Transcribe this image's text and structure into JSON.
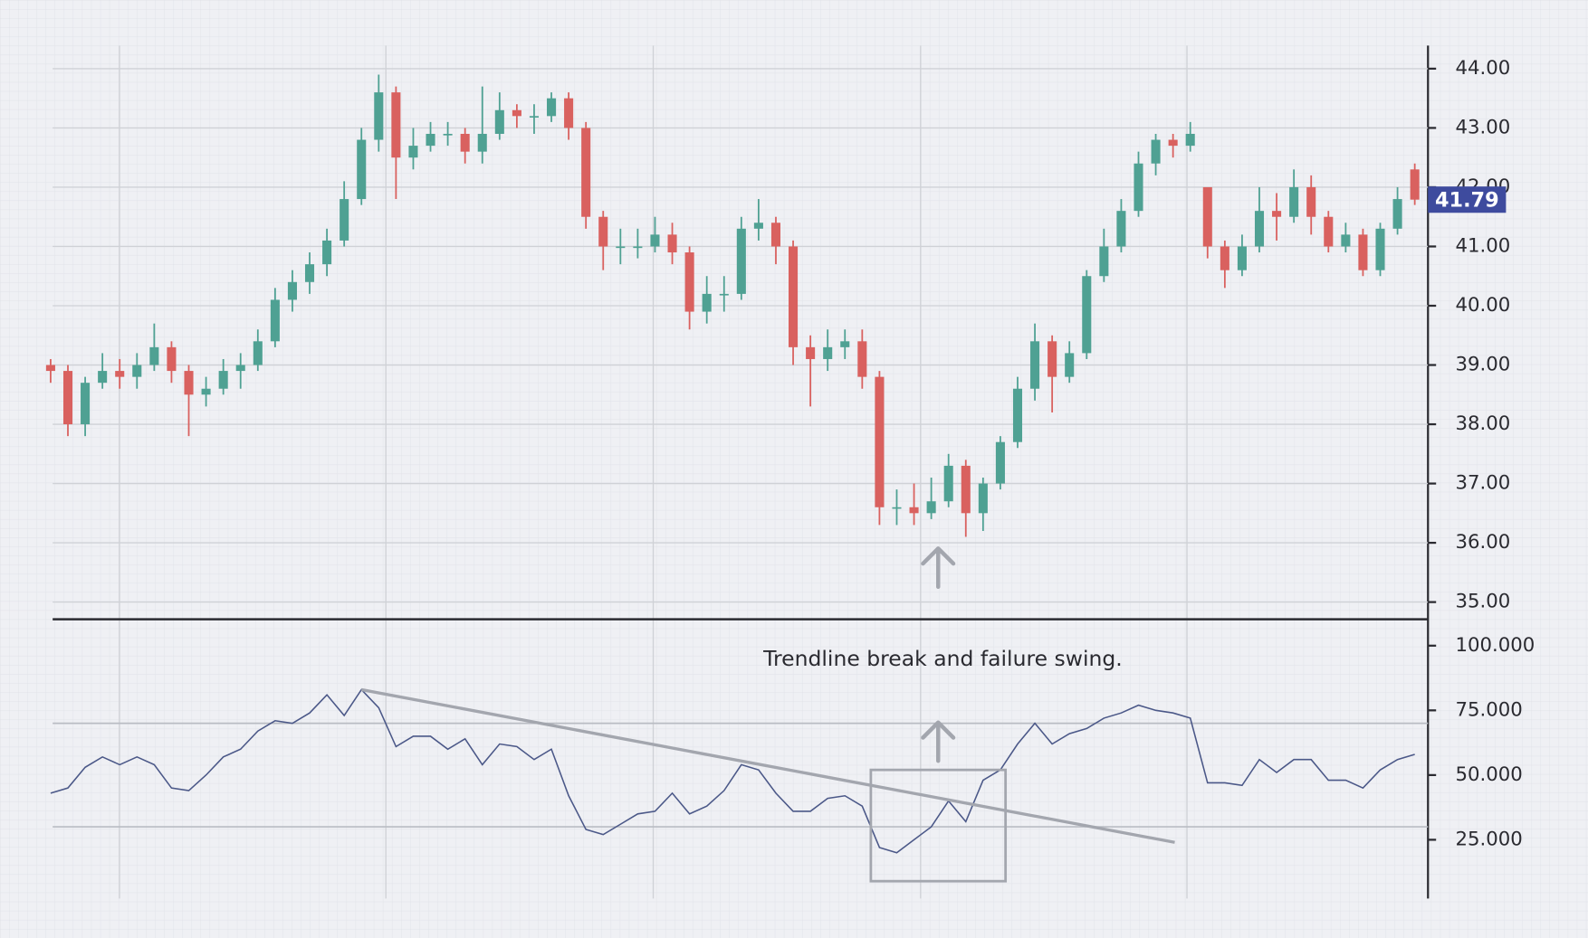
{
  "chart_data": [
    {
      "type": "candlestick",
      "open": [
        39.0,
        38.9,
        38.0,
        38.7,
        38.9,
        38.8,
        39.0,
        39.3,
        38.9,
        38.5,
        38.6,
        38.9,
        39.0,
        39.4,
        40.1,
        40.4,
        40.7,
        41.1,
        41.8,
        42.8,
        43.6,
        42.5,
        42.7,
        42.9,
        42.9,
        42.6,
        42.9,
        43.3,
        43.2,
        43.2,
        43.5,
        43.0,
        41.5,
        41.0,
        41.0,
        41.0,
        41.2,
        40.9,
        39.9,
        40.2,
        40.2,
        41.3,
        41.4,
        41.0,
        39.3,
        39.1,
        39.3,
        39.4,
        38.8,
        36.6,
        36.6,
        36.5,
        36.7,
        37.3,
        36.5,
        37.0,
        37.7,
        38.6,
        39.4,
        38.8,
        39.2,
        40.5,
        41.0,
        41.6,
        42.4,
        42.8,
        42.7,
        42.0,
        41.0,
        40.6,
        41.0,
        41.6,
        41.5,
        42.0,
        41.5,
        41.0,
        41.2,
        40.6,
        41.3,
        42.3
      ],
      "high": [
        39.1,
        39.0,
        38.8,
        39.2,
        39.1,
        39.2,
        39.7,
        39.4,
        39.0,
        38.8,
        39.1,
        39.2,
        39.6,
        40.3,
        40.6,
        40.9,
        41.3,
        42.1,
        43.0,
        43.9,
        43.7,
        43.0,
        43.1,
        43.1,
        43.0,
        43.7,
        43.6,
        43.4,
        43.4,
        43.6,
        43.6,
        43.1,
        41.6,
        41.3,
        41.3,
        41.5,
        41.4,
        41.0,
        40.5,
        40.5,
        41.5,
        41.8,
        41.5,
        41.1,
        39.5,
        39.6,
        39.6,
        39.6,
        38.9,
        36.9,
        37.0,
        37.1,
        37.5,
        37.4,
        37.1,
        37.8,
        38.8,
        39.7,
        39.5,
        39.4,
        40.6,
        41.3,
        41.8,
        42.6,
        42.9,
        42.9,
        43.1,
        42.0,
        41.1,
        41.2,
        42.0,
        41.9,
        42.3,
        42.2,
        41.6,
        41.4,
        41.3,
        41.4,
        42.0,
        42.4
      ],
      "low": [
        38.7,
        37.8,
        37.8,
        38.6,
        38.6,
        38.6,
        38.9,
        38.7,
        37.8,
        38.3,
        38.5,
        38.6,
        38.9,
        39.3,
        39.9,
        40.2,
        40.5,
        41.0,
        41.7,
        42.6,
        41.8,
        42.3,
        42.6,
        42.7,
        42.4,
        42.4,
        42.8,
        43.0,
        42.9,
        43.1,
        42.8,
        41.3,
        40.6,
        40.7,
        40.8,
        40.9,
        40.7,
        39.6,
        39.7,
        39.9,
        40.1,
        41.1,
        40.7,
        39.0,
        38.3,
        38.9,
        39.1,
        38.6,
        36.3,
        36.3,
        36.3,
        36.4,
        36.6,
        36.1,
        36.2,
        36.9,
        37.6,
        38.4,
        38.2,
        38.7,
        39.1,
        40.4,
        40.9,
        41.5,
        42.2,
        42.5,
        42.6,
        40.8,
        40.3,
        40.5,
        40.9,
        41.1,
        41.4,
        41.2,
        40.9,
        40.9,
        40.5,
        40.5,
        41.2,
        41.7
      ],
      "close": [
        38.9,
        38.0,
        38.7,
        38.9,
        38.8,
        39.0,
        39.3,
        38.9,
        38.5,
        38.6,
        38.9,
        39.0,
        39.4,
        40.1,
        40.4,
        40.7,
        41.1,
        41.8,
        42.8,
        43.6,
        42.5,
        42.7,
        42.9,
        42.9,
        42.6,
        42.9,
        43.3,
        43.2,
        43.2,
        43.5,
        43.0,
        41.5,
        41.0,
        41.0,
        41.0,
        41.2,
        40.9,
        39.9,
        40.2,
        40.2,
        41.3,
        41.4,
        41.0,
        39.3,
        39.1,
        39.3,
        39.4,
        38.8,
        36.6,
        36.6,
        36.5,
        36.7,
        37.3,
        36.5,
        37.0,
        37.7,
        38.6,
        39.4,
        38.8,
        39.2,
        40.5,
        41.0,
        41.6,
        42.4,
        42.8,
        42.7,
        42.9,
        41.0,
        40.6,
        41.0,
        41.6,
        41.5,
        42.0,
        41.5,
        41.0,
        41.2,
        40.6,
        41.3,
        41.8,
        41.79
      ],
      "up_color": "#4fa193",
      "down_color": "#d9615f",
      "ylim": [
        34.71,
        44.39
      ],
      "yticks": [
        {
          "value": 35,
          "label": "35.00"
        },
        {
          "value": 36,
          "label": "36.00"
        },
        {
          "value": 37,
          "label": "37.00"
        },
        {
          "value": 38,
          "label": "38.00"
        },
        {
          "value": 39,
          "label": "39.00"
        },
        {
          "value": 40,
          "label": "40.00"
        },
        {
          "value": 41,
          "label": "41.00"
        },
        {
          "value": 42,
          "label": "42.00"
        },
        {
          "value": 43,
          "label": "43.00"
        },
        {
          "value": 44,
          "label": "44.00"
        }
      ],
      "grid": true,
      "last_price": 41.79,
      "last_price_color": "#3e4b9e"
    },
    {
      "type": "line",
      "values": [
        43,
        45,
        53,
        57,
        54,
        57,
        54,
        45,
        44,
        50,
        57,
        60,
        67,
        71,
        70,
        74,
        81,
        73,
        83,
        76,
        61,
        65,
        65,
        60,
        64,
        54,
        62,
        61,
        56,
        60,
        42,
        29,
        27,
        31,
        35,
        36,
        43,
        35,
        38,
        44,
        54,
        52,
        43,
        36,
        36,
        41,
        42,
        38,
        22,
        20,
        25,
        30,
        40,
        32,
        48,
        52,
        62,
        70,
        62,
        66,
        68,
        72,
        74,
        77,
        75,
        74,
        72,
        47,
        47,
        46,
        56,
        51,
        56,
        56,
        48,
        48,
        45,
        52,
        56,
        58
      ],
      "color": "#4b5888",
      "ylim": [
        2.3,
        110.2
      ],
      "yticks": [
        {
          "value": 25,
          "label": "25.000"
        },
        {
          "value": 50,
          "label": "50.000"
        },
        {
          "value": 75,
          "label": "75.000"
        },
        {
          "value": 100,
          "label": "100.000"
        }
      ],
      "hlines": [
        30,
        70
      ],
      "annotation": "Trendline break and failure swing.",
      "trendline": {
        "x": [
          18,
          65.1
        ],
        "values": [
          83,
          24
        ],
        "color": "#a3a6ae"
      },
      "highlight": {
        "x": [
          47.5,
          55.3
        ],
        "y": [
          9,
          52
        ],
        "color": "#a3a6ae"
      }
    }
  ]
}
